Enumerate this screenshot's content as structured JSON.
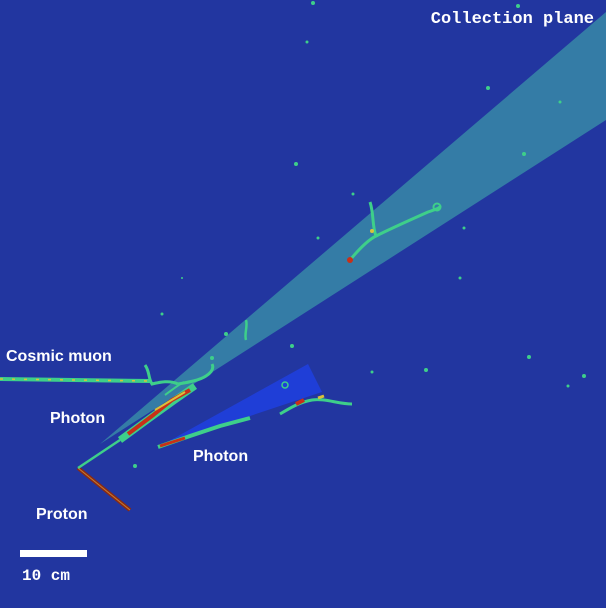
{
  "display": {
    "plane_title": "Collection plane",
    "scale_label": "10 cm",
    "background_color": "#2236a0"
  },
  "labels": {
    "cosmic_muon": "Cosmic muon",
    "photon_upper": "Photon",
    "photon_lower": "Photon",
    "proton": "Proton"
  },
  "colors": {
    "photon_cone_1": "#3a8fa8",
    "photon_cone_2": "#1e3fe0",
    "track_low": "#3ecf8a",
    "track_mid": "#d9c23a",
    "track_high": "#c83018",
    "proton_track": "#8a2a14"
  }
}
